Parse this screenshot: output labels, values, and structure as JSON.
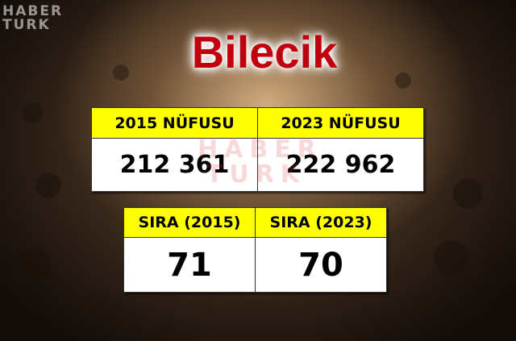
{
  "watermark": {
    "line1": "HABER",
    "line2": "TURK"
  },
  "title": "Bilecik",
  "population_table": {
    "headers": [
      "2015 NÜFUSU",
      "2023 NÜFUSU"
    ],
    "values": [
      "212 361",
      "222 962"
    ]
  },
  "rank_table": {
    "headers": [
      "SIRA (2015)",
      "SIRA (2023)"
    ],
    "values": [
      "71",
      "70"
    ]
  },
  "colors": {
    "title": "#c0000f",
    "header_bg": "#ffff00"
  }
}
